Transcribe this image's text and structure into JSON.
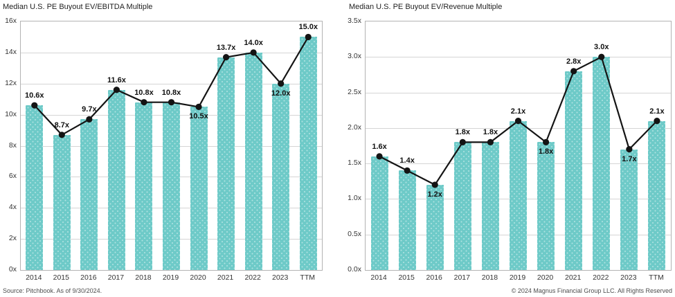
{
  "footer": {
    "source": "Source: Pitchbook. As of 9/30/2024.",
    "copyright": "© 2024 Magnus Financial Group LLC. All Rights Reserved"
  },
  "colors": {
    "bar": "#6ecac8",
    "bar_dot": "#9ddad8",
    "line": "#141414",
    "marker": "#141414",
    "grid": "#d4d4d4",
    "plot_border": "#b3b3b3",
    "title_text": "#1f1f1f",
    "tick_text": "#333333",
    "footer_text": "#4d4d4d"
  },
  "chart_data": [
    {
      "type": "bar",
      "overlay": "line",
      "title": "Median U.S. PE Buyout EV/EBITDA Multiple",
      "categories": [
        "2014",
        "2015",
        "2016",
        "2017",
        "2018",
        "2019",
        "2020",
        "2021",
        "2022",
        "2023",
        "TTM"
      ],
      "values": [
        10.6,
        8.7,
        9.7,
        11.6,
        10.8,
        10.8,
        10.5,
        13.7,
        14.0,
        12.0,
        15.0
      ],
      "value_labels": [
        "10.6x",
        "8.7x",
        "9.7x",
        "11.6x",
        "10.8x",
        "10.8x",
        "10.5x",
        "13.7x",
        "14.0x",
        "12.0x",
        "15.0x"
      ],
      "label_position": [
        "above",
        "above",
        "above",
        "above",
        "above",
        "above",
        "below",
        "above",
        "above",
        "below",
        "above"
      ],
      "xlabel": "",
      "ylabel": "",
      "ylim": [
        0,
        16
      ],
      "ytick_values": [
        0,
        2,
        4,
        6,
        8,
        10,
        12,
        14,
        16
      ],
      "ytick_labels": [
        "0x",
        "2x",
        "4x",
        "6x",
        "8x",
        "10x",
        "12x",
        "14x",
        "16x"
      ],
      "grid": true,
      "legend": "none"
    },
    {
      "type": "bar",
      "overlay": "line",
      "title": "Median U.S. PE Buyout EV/Revenue Multiple",
      "categories": [
        "2014",
        "2015",
        "2016",
        "2017",
        "2018",
        "2019",
        "2020",
        "2021",
        "2022",
        "2023",
        "TTM"
      ],
      "values": [
        1.6,
        1.4,
        1.2,
        1.8,
        1.8,
        2.1,
        1.8,
        2.8,
        3.0,
        1.7,
        2.1
      ],
      "value_labels": [
        "1.6x",
        "1.4x",
        "1.2x",
        "1.8x",
        "1.8x",
        "2.1x",
        "1.8x",
        "2.8x",
        "3.0x",
        "1.7x",
        "2.1x"
      ],
      "label_position": [
        "above",
        "above",
        "below",
        "above",
        "above",
        "above",
        "below",
        "above",
        "above",
        "below",
        "above"
      ],
      "xlabel": "",
      "ylabel": "",
      "ylim": [
        0,
        3.5
      ],
      "ytick_values": [
        0,
        0.5,
        1.0,
        1.5,
        2.0,
        2.5,
        3.0,
        3.5
      ],
      "ytick_labels": [
        "0.0x",
        "0.5x",
        "1.0x",
        "1.5x",
        "2.0x",
        "2.5x",
        "3.0x",
        "3.5x"
      ],
      "grid": true,
      "legend": "none"
    }
  ]
}
